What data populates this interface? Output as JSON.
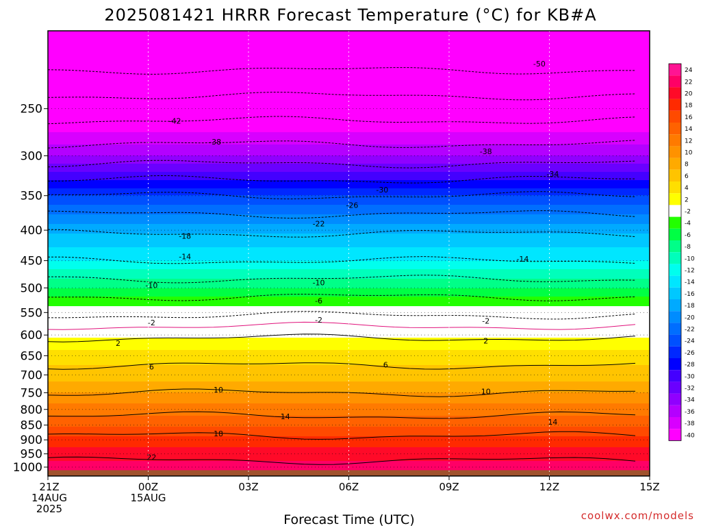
{
  "chart_data": {
    "type": "heatmap",
    "title": "2025081421 HRRR Forecast Temperature (°C) for KB#A",
    "xlabel": "Forecast Time (UTC)",
    "ylabel": "",
    "credit": "coolwx.com/models",
    "x_ticks": [
      {
        "lines": [
          "21Z",
          "14AUG",
          "2025"
        ],
        "hour": 0
      },
      {
        "lines": [
          "00Z",
          "15AUG"
        ],
        "hour": 3
      },
      {
        "lines": [
          "03Z"
        ],
        "hour": 6
      },
      {
        "lines": [
          "06Z"
        ],
        "hour": 9
      },
      {
        "lines": [
          "09Z"
        ],
        "hour": 12
      },
      {
        "lines": [
          "12Z"
        ],
        "hour": 15
      },
      {
        "lines": [
          "15Z"
        ],
        "hour": 18
      }
    ],
    "x_range_hours": [
      0,
      18
    ],
    "y_axis_log_pressure": true,
    "y_range_hPa": [
      1035,
      185
    ],
    "y_ticks": [
      "250",
      "300",
      "350",
      "400",
      "450",
      "500",
      "550",
      "600",
      "650",
      "700",
      "750",
      "800",
      "850",
      "900",
      "950",
      "1000"
    ],
    "y_tick_values": [
      250,
      300,
      350,
      400,
      450,
      500,
      550,
      600,
      650,
      700,
      750,
      800,
      850,
      900,
      950,
      1000
    ],
    "colorbar": {
      "labels": [
        "24",
        "22",
        "20",
        "18",
        "16",
        "14",
        "12",
        "10",
        "8",
        "6",
        "4",
        "2",
        "-2",
        "-4",
        "-6",
        "-8",
        "-10",
        "-12",
        "-14",
        "-16",
        "-18",
        "-20",
        "-22",
        "-24",
        "-26",
        "-28",
        "-30",
        "-32",
        "-34",
        "-36",
        "-38",
        "-40"
      ],
      "colors": [
        "#ff1493",
        "#ff0066",
        "#ff0a28",
        "#ff2a00",
        "#ff4a00",
        "#ff6200",
        "#ff7a00",
        "#ff9200",
        "#ffaa00",
        "#ffc400",
        "#ffdf00",
        "#ffff00",
        "#ffffff",
        "#22ff00",
        "#00ff44",
        "#00ff88",
        "#00ffbb",
        "#00ffee",
        "#00e6ff",
        "#00c8ff",
        "#00aaff",
        "#008cff",
        "#006eff",
        "#0050ff",
        "#0028ff",
        "#0000ff",
        "#4400ff",
        "#6a00ff",
        "#9000ff",
        "#b400ff",
        "#d800ff",
        "#ff00ff"
      ]
    },
    "profile": [
      {
        "p": 1000,
        "t": 23
      },
      {
        "p": 950,
        "t": 21
      },
      {
        "p": 900,
        "t": 19
      },
      {
        "p": 850,
        "t": 15.5
      },
      {
        "p": 800,
        "t": 13
      },
      {
        "p": 750,
        "t": 10
      },
      {
        "p": 700,
        "t": 7
      },
      {
        "p": 650,
        "t": 5
      },
      {
        "p": 600,
        "t": 1.5
      },
      {
        "p": 580,
        "t": 0
      },
      {
        "p": 550,
        "t": -2.5
      },
      {
        "p": 500,
        "t": -8
      },
      {
        "p": 450,
        "t": -14
      },
      {
        "p": 400,
        "t": -18.5
      },
      {
        "p": 350,
        "t": -26
      },
      {
        "p": 300,
        "t": -36
      },
      {
        "p": 250,
        "t": -44
      },
      {
        "p": 200,
        "t": -53
      }
    ],
    "contour_labels": [
      {
        "text": "-50",
        "hour": 14.7,
        "p": 210
      },
      {
        "text": "-42",
        "hour": 3.8,
        "p": 262
      },
      {
        "text": "-38",
        "hour": 5,
        "p": 284
      },
      {
        "text": "-38",
        "hour": 13.1,
        "p": 295
      },
      {
        "text": "-34",
        "hour": 15.1,
        "p": 322
      },
      {
        "text": "-30",
        "hour": 10,
        "p": 342
      },
      {
        "text": "-26",
        "hour": 9.1,
        "p": 363
      },
      {
        "text": "-22",
        "hour": 8.1,
        "p": 390
      },
      {
        "text": "-18",
        "hour": 4.1,
        "p": 409
      },
      {
        "text": "-14",
        "hour": 4.1,
        "p": 443
      },
      {
        "text": "-14",
        "hour": 14.2,
        "p": 447
      },
      {
        "text": "-10",
        "hour": 3.1,
        "p": 495
      },
      {
        "text": "-10",
        "hour": 8.1,
        "p": 490
      },
      {
        "text": "-6",
        "hour": 8.1,
        "p": 525
      },
      {
        "text": "-2",
        "hour": 3.1,
        "p": 572
      },
      {
        "text": "-2",
        "hour": 8.1,
        "p": 566
      },
      {
        "text": "-2",
        "hour": 13.1,
        "p": 568
      },
      {
        "text": "2",
        "hour": 2.1,
        "p": 619
      },
      {
        "text": "2",
        "hour": 13.1,
        "p": 613
      },
      {
        "text": "6",
        "hour": 3.1,
        "p": 678
      },
      {
        "text": "6",
        "hour": 10.1,
        "p": 673
      },
      {
        "text": "10",
        "hour": 5.1,
        "p": 741
      },
      {
        "text": "10",
        "hour": 13.1,
        "p": 746
      },
      {
        "text": "14",
        "hour": 7.1,
        "p": 822
      },
      {
        "text": "14",
        "hour": 15.1,
        "p": 840
      },
      {
        "text": "18",
        "hour": 5.1,
        "p": 878
      },
      {
        "text": "22",
        "hour": 3.1,
        "p": 962
      }
    ]
  }
}
